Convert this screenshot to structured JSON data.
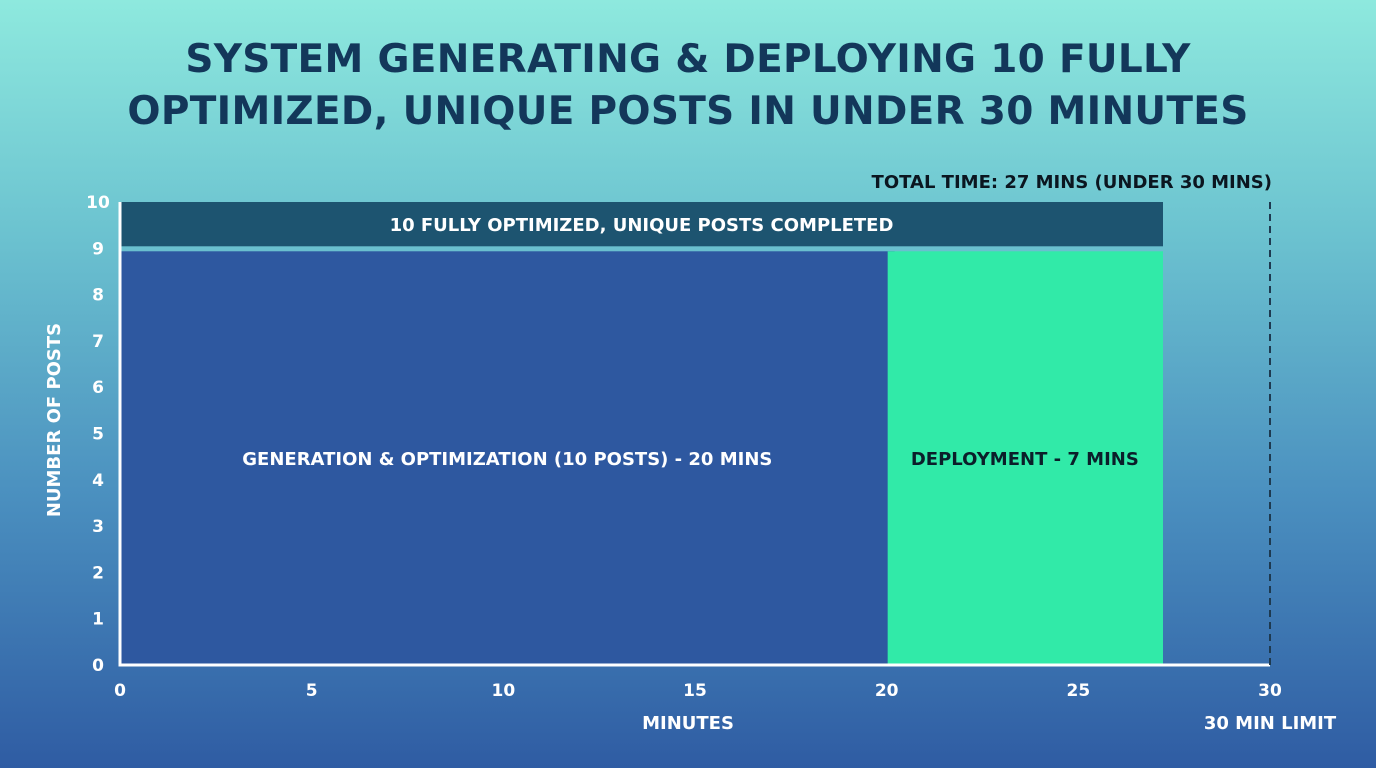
{
  "chart_data": {
    "type": "bar",
    "title_lines": [
      "SYSTEM GENERATING & DEPLOYING 10 FULLY",
      "OPTIMIZED, UNIQUE POSTS IN UNDER 30 MINUTES"
    ],
    "annotation": "TOTAL TIME: 27 MINS (UNDER 30 MINS)",
    "xlabel": "MINUTES",
    "ylabel": "NUMBER OF POSTS",
    "xlim": [
      0,
      30
    ],
    "ylim": [
      0,
      10
    ],
    "xticks": [
      0,
      5,
      10,
      15,
      20,
      25,
      30
    ],
    "yticks": [
      0,
      1,
      2,
      3,
      4,
      5,
      6,
      7,
      8,
      9,
      10
    ],
    "grid": false,
    "segments": [
      {
        "label": "GENERATION & OPTIMIZATION (10 POSTS) - 20 MINS",
        "x_start": 0,
        "x_end": 20,
        "y_start": 0,
        "y_end": 9,
        "color": "#2e58a0",
        "text_color": "#ffffff"
      },
      {
        "label": "DEPLOYMENT - 7 MINS",
        "x_start": 20,
        "x_end": 27,
        "y_start": 0,
        "y_end": 9,
        "color": "#31eaa8",
        "text_color": "#0b1f2a"
      },
      {
        "label": "10 FULLY OPTIMIZED, UNIQUE POSTS COMPLETED",
        "x_start": 0,
        "x_end": 27,
        "y_start": 9,
        "y_end": 10,
        "color": "#1d5470",
        "text_color": "#ffffff"
      }
    ],
    "limit_line": {
      "x": 30,
      "label": "30 MIN LIMIT",
      "style": "dashed",
      "color": "#1e3a50"
    }
  }
}
